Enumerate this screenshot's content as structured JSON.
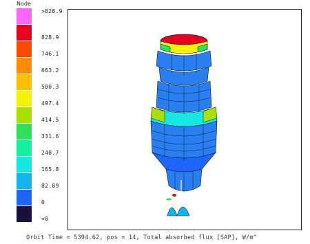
{
  "legend": {
    "title": "Node",
    "bins": [
      {
        "label": ">828.9",
        "color": "#ff66ff"
      },
      {
        "label": "828.9",
        "color": "#e8001f"
      },
      {
        "label": "746.1",
        "color": "#ff4a00"
      },
      {
        "label": "663.2",
        "color": "#ff8c00"
      },
      {
        "label": "580.3",
        "color": "#ffbf00"
      },
      {
        "label": "497.4",
        "color": "#f4f400"
      },
      {
        "label": "414.5",
        "color": "#a8e000"
      },
      {
        "label": "331.6",
        "color": "#2ee05a"
      },
      {
        "label": "248.7",
        "color": "#14f0a0"
      },
      {
        "label": "165.8",
        "color": "#14e8e0"
      },
      {
        "label": "82.89",
        "color": "#14b4f0"
      },
      {
        "label": "0",
        "color": "#1e64ff"
      },
      {
        "label": "<0",
        "color": "#1a1040"
      }
    ]
  },
  "status_bar": {
    "text": "Orbit Time = 5394.62, pos = 14, Total absorbed flux [SAP], W/m^"
  },
  "colors": {
    "frame": "#222222",
    "body_blue": "#2a7ff0",
    "mesh_line": "#0a1a3a"
  }
}
